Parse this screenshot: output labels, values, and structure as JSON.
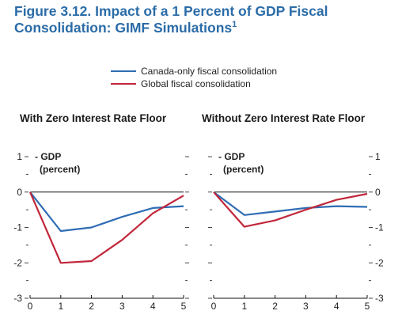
{
  "figure": {
    "title_line1": "Figure 3.12.  Impact of a 1 Percent of GDP Fiscal",
    "title_line2": "Consolidation: GIMF Simulations",
    "title_footnote": "1"
  },
  "colors": {
    "title": "#2b6ca8",
    "canada": "#2f6db5",
    "global": "#c0273a"
  },
  "chart_data": [
    {
      "type": "line",
      "title": "With Zero Interest Rate Floor",
      "ylabel": "GDP",
      "unit": "(percent)",
      "x": [
        0,
        1,
        2,
        3,
        4,
        5
      ],
      "xlim": [
        0,
        5
      ],
      "ylim": [
        -3,
        1
      ],
      "yticks": [
        1,
        0,
        -1,
        -2,
        -3
      ],
      "ytick_side": "left",
      "legend": "top",
      "series": [
        {
          "name": "Canada-only fiscal consolidation",
          "color": "#2f6db5",
          "values": [
            0,
            -1.1,
            -1.0,
            -0.7,
            -0.45,
            -0.4
          ]
        },
        {
          "name": "Global fiscal consolidation",
          "color": "#c0273a",
          "values": [
            0,
            -2.0,
            -1.95,
            -1.35,
            -0.6,
            -0.1
          ]
        }
      ]
    },
    {
      "type": "line",
      "title": "Without Zero Interest Rate Floor",
      "ylabel": "GDP",
      "unit": "(percent)",
      "x": [
        0,
        1,
        2,
        3,
        4,
        5
      ],
      "xlim": [
        0,
        5
      ],
      "ylim": [
        -3,
        1
      ],
      "yticks": [
        1,
        0,
        -1,
        -2,
        -3
      ],
      "ytick_side": "right",
      "series": [
        {
          "name": "Canada-only fiscal consolidation",
          "color": "#2f6db5",
          "values": [
            0,
            -0.65,
            -0.55,
            -0.45,
            -0.4,
            -0.42
          ]
        },
        {
          "name": "Global fiscal consolidation",
          "color": "#c0273a",
          "values": [
            0,
            -0.98,
            -0.8,
            -0.5,
            -0.22,
            -0.05
          ]
        }
      ]
    }
  ]
}
